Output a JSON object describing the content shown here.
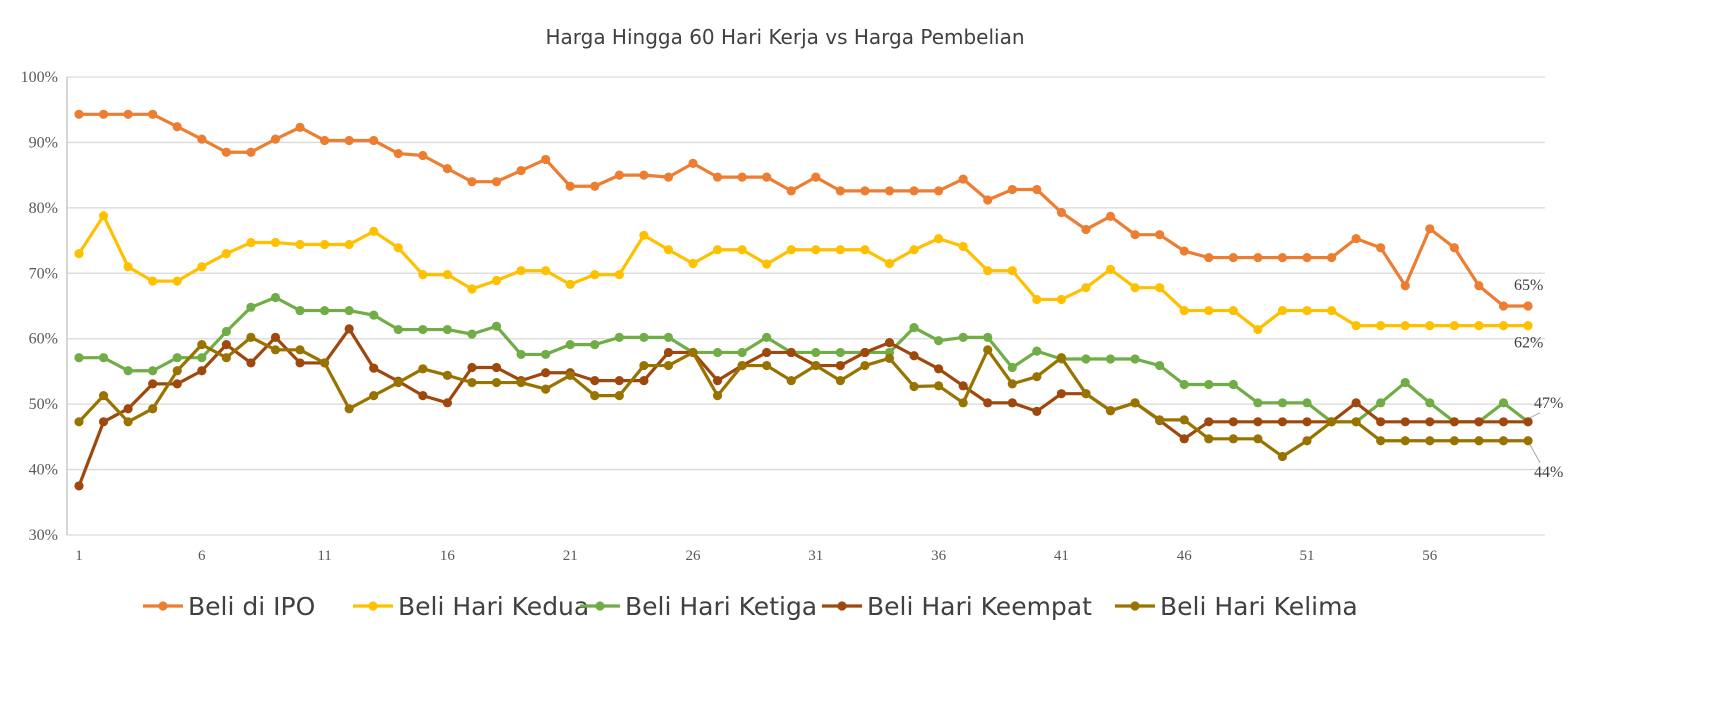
{
  "chart_data": {
    "type": "line",
    "title": "Harga Hingga 60 Hari Kerja vs Harga Pembelian",
    "xlabel": "",
    "ylabel": "",
    "ylim": [
      30,
      100
    ],
    "y_ticks": [
      "30%",
      "40%",
      "50%",
      "60%",
      "70%",
      "80%",
      "90%",
      "100%"
    ],
    "x_ticks": [
      "1",
      "6",
      "11",
      "16",
      "21",
      "26",
      "31",
      "36",
      "41",
      "46",
      "51",
      "56"
    ],
    "x": [
      1,
      2,
      3,
      4,
      5,
      6,
      7,
      8,
      9,
      10,
      11,
      12,
      13,
      14,
      15,
      16,
      17,
      18,
      19,
      20,
      21,
      22,
      23,
      24,
      25,
      26,
      27,
      28,
      29,
      30,
      31,
      32,
      33,
      34,
      35,
      36,
      37,
      38,
      39,
      40,
      41,
      42,
      43,
      44,
      45,
      46,
      47,
      48,
      49,
      50,
      51,
      52,
      53,
      54,
      55,
      56,
      57,
      58,
      59,
      60
    ],
    "grid": true,
    "legend_position": "bottom",
    "series": [
      {
        "name": "Beli di IPO",
        "color": "#ED7D31",
        "end_label": "65%",
        "values": [
          94.3,
          94.3,
          94.3,
          94.3,
          92.4,
          90.5,
          88.5,
          88.5,
          90.5,
          92.3,
          90.3,
          90.3,
          90.3,
          88.3,
          88.0,
          86.0,
          84.0,
          84.0,
          85.7,
          87.4,
          83.3,
          83.3,
          85.0,
          85.0,
          84.7,
          86.8,
          84.7,
          84.7,
          84.7,
          82.6,
          84.7,
          82.6,
          82.6,
          82.6,
          82.6,
          82.6,
          84.4,
          81.2,
          82.8,
          82.8,
          79.3,
          76.7,
          78.7,
          75.9,
          75.9,
          73.4,
          72.4,
          72.4,
          72.4,
          72.4,
          72.4,
          72.4,
          75.3,
          73.9,
          68.1,
          76.8,
          73.9,
          68.1,
          65.0,
          65.0
        ]
      },
      {
        "name": "Beli Hari Kedua",
        "color": "#FFC000",
        "end_label": "62%",
        "values": [
          73.0,
          78.8,
          71.0,
          68.8,
          68.8,
          71.0,
          73.0,
          74.7,
          74.7,
          74.4,
          74.4,
          74.4,
          76.4,
          73.9,
          69.8,
          69.8,
          67.6,
          68.9,
          70.4,
          70.4,
          68.3,
          69.8,
          69.8,
          75.8,
          73.6,
          71.5,
          73.6,
          73.6,
          71.4,
          73.6,
          73.6,
          73.6,
          73.6,
          71.5,
          73.6,
          75.3,
          74.1,
          70.4,
          70.4,
          66.0,
          66.0,
          67.8,
          70.6,
          67.8,
          67.8,
          64.3,
          64.3,
          64.3,
          61.4,
          64.3,
          64.3,
          64.3,
          62.0,
          62.0,
          62.0,
          62.0,
          62.0,
          62.0,
          62.0,
          62.0
        ]
      },
      {
        "name": "Beli Hari Ketiga",
        "color": "#70AD47",
        "end_label": "47%",
        "values": [
          57.1,
          57.1,
          55.1,
          55.1,
          57.1,
          57.1,
          61.1,
          64.8,
          66.3,
          64.3,
          64.3,
          64.3,
          63.6,
          61.4,
          61.4,
          61.4,
          60.7,
          61.9,
          57.6,
          57.6,
          59.1,
          59.1,
          60.2,
          60.2,
          60.2,
          57.9,
          57.9,
          57.9,
          60.2,
          57.9,
          57.9,
          57.9,
          57.9,
          57.9,
          61.7,
          59.7,
          60.2,
          60.2,
          55.6,
          58.1,
          56.9,
          56.9,
          56.9,
          56.9,
          55.9,
          53.0,
          53.0,
          53.0,
          50.2,
          50.2,
          50.2,
          47.3,
          47.3,
          50.2,
          53.3,
          50.2,
          47.3,
          47.3,
          50.2,
          47.3
        ]
      },
      {
        "name": "Beli Hari Keempat",
        "color": "#9E480E",
        "end_label": "",
        "values": [
          37.5,
          47.3,
          49.3,
          53.1,
          53.1,
          55.1,
          59.1,
          56.3,
          60.2,
          56.3,
          56.3,
          61.5,
          55.5,
          53.5,
          51.3,
          50.2,
          55.6,
          55.6,
          53.6,
          54.8,
          54.8,
          53.6,
          53.6,
          53.6,
          57.9,
          57.9,
          53.6,
          55.9,
          57.9,
          57.9,
          55.9,
          55.9,
          57.9,
          59.4,
          57.4,
          55.4,
          52.8,
          50.2,
          50.2,
          48.9,
          51.6,
          51.6,
          49.0,
          50.2,
          47.5,
          44.7,
          47.3,
          47.3,
          47.3,
          47.3,
          47.3,
          47.3,
          50.2,
          47.3,
          47.3,
          47.3,
          47.3,
          47.3,
          47.3,
          47.3
        ]
      },
      {
        "name": "Beli Hari Kelima",
        "color": "#997300",
        "end_label": "44%",
        "values": [
          47.3,
          51.3,
          47.3,
          49.3,
          55.1,
          59.1,
          57.1,
          60.2,
          58.3,
          58.3,
          56.3,
          49.3,
          51.3,
          53.3,
          55.4,
          54.4,
          53.3,
          53.3,
          53.3,
          52.3,
          54.4,
          51.3,
          51.3,
          55.9,
          55.9,
          57.9,
          51.3,
          55.9,
          55.9,
          53.6,
          55.9,
          53.6,
          55.9,
          57.0,
          52.7,
          52.8,
          50.2,
          58.3,
          53.1,
          54.2,
          57.1,
          51.6,
          49.0,
          50.2,
          47.6,
          47.6,
          44.7,
          44.7,
          44.7,
          42.0,
          44.4,
          47.3,
          47.3,
          44.4,
          44.4,
          44.4,
          44.4,
          44.4,
          44.4,
          44.4
        ]
      }
    ]
  }
}
